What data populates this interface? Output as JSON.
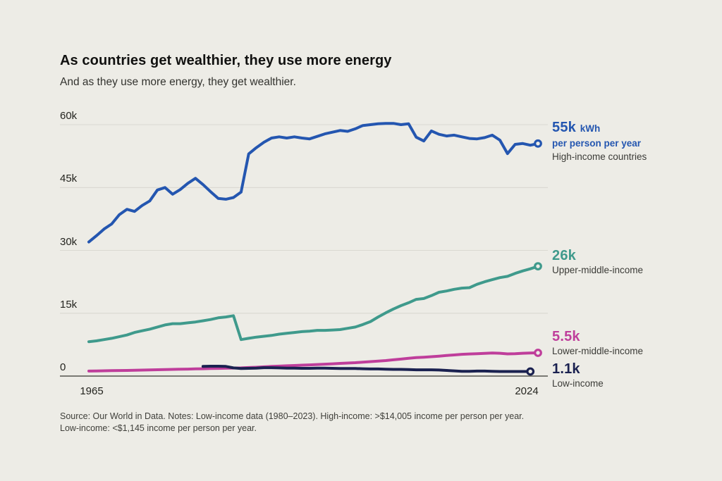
{
  "header": {
    "title": "As countries get wealthier, they use more energy",
    "subtitle": "And as they use more energy, they get wealthier."
  },
  "colors": {
    "background": "#edece6",
    "grid": "#d9d8d1",
    "axis": "#55544e",
    "high_income": "#2456b0",
    "upper_middle": "#3f9a8c",
    "lower_middle": "#bf3e9b",
    "low_income": "#1a2150"
  },
  "chart_data": {
    "type": "line",
    "title": "As countries get wealthier, they use more energy",
    "unit": "kWh per person per year",
    "values_unit": "thousand kWh per person per year",
    "x_range": [
      1965,
      2024
    ],
    "x_tick_labels": [
      "1965",
      "2024"
    ],
    "ylim": [
      0,
      60
    ],
    "grid": "horizontal",
    "legend_position": "right",
    "y_ticks": [
      {
        "value": 60,
        "label": "60k"
      },
      {
        "value": 45,
        "label": "45k"
      },
      {
        "value": 30,
        "label": "30k"
      },
      {
        "value": 15,
        "label": "15k"
      },
      {
        "value": 0,
        "label": "0"
      }
    ],
    "series": [
      {
        "name": "High-income countries",
        "color": "#2456b0",
        "start_year": 1965,
        "end_label": {
          "value": "55k",
          "unit": "kWh",
          "sub": "per person per year"
        },
        "values": [
          32.0,
          33.5,
          35.1,
          36.3,
          38.5,
          39.8,
          39.3,
          40.7,
          41.8,
          44.4,
          45.0,
          43.4,
          44.5,
          46.0,
          47.2,
          45.7,
          44.0,
          42.4,
          42.2,
          42.6,
          43.9,
          53.0,
          54.5,
          55.8,
          56.8,
          57.1,
          56.8,
          57.1,
          56.8,
          56.6,
          57.2,
          57.8,
          58.2,
          58.6,
          58.4,
          59.0,
          59.8,
          60.0,
          60.2,
          60.3,
          60.3,
          60.0,
          60.2,
          57.0,
          56.1,
          58.5,
          57.7,
          57.3,
          57.5,
          57.1,
          56.7,
          56.6,
          56.9,
          57.5,
          56.3,
          53.1,
          55.3,
          55.5,
          55.1,
          55.5
        ]
      },
      {
        "name": "Upper-middle-income",
        "color": "#3f9a8c",
        "start_year": 1965,
        "end_label": {
          "value": "26k"
        },
        "values": [
          8.2,
          8.4,
          8.7,
          9.0,
          9.4,
          9.8,
          10.4,
          10.8,
          11.2,
          11.7,
          12.2,
          12.5,
          12.5,
          12.7,
          12.9,
          13.2,
          13.5,
          13.9,
          14.1,
          14.4,
          8.7,
          9.0,
          9.3,
          9.5,
          9.7,
          10.0,
          10.2,
          10.4,
          10.6,
          10.7,
          10.9,
          10.9,
          11.0,
          11.1,
          11.4,
          11.7,
          12.3,
          13.0,
          14.1,
          15.1,
          16.0,
          16.8,
          17.5,
          18.3,
          18.5,
          19.2,
          20.0,
          20.3,
          20.7,
          21.0,
          21.1,
          21.9,
          22.5,
          23.0,
          23.5,
          23.8,
          24.5,
          25.1,
          25.6,
          26.2
        ]
      },
      {
        "name": "Lower-middle-income",
        "color": "#bf3e9b",
        "start_year": 1965,
        "end_label": {
          "value": "5.5k"
        },
        "values": [
          1.2,
          1.23,
          1.26,
          1.29,
          1.32,
          1.35,
          1.39,
          1.43,
          1.47,
          1.51,
          1.55,
          1.59,
          1.63,
          1.67,
          1.71,
          1.75,
          1.79,
          1.83,
          1.87,
          1.91,
          1.95,
          2.03,
          2.1,
          2.2,
          2.3,
          2.37,
          2.45,
          2.52,
          2.6,
          2.67,
          2.75,
          2.84,
          2.93,
          3.02,
          3.11,
          3.2,
          3.32,
          3.45,
          3.57,
          3.7,
          3.88,
          4.05,
          4.23,
          4.4,
          4.5,
          4.62,
          4.75,
          4.9,
          5.05,
          5.2,
          5.28,
          5.35,
          5.42,
          5.5,
          5.45,
          5.3,
          5.35,
          5.45,
          5.5,
          5.55
        ]
      },
      {
        "name": "Low-income",
        "color": "#1a2150",
        "start_year": 1980,
        "end_label": {
          "value": "1.1k"
        },
        "values": [
          2.3,
          2.35,
          2.35,
          2.3,
          1.95,
          1.8,
          1.85,
          1.9,
          2.0,
          2.0,
          1.95,
          1.9,
          1.9,
          1.85,
          1.85,
          1.9,
          1.9,
          1.85,
          1.8,
          1.8,
          1.8,
          1.75,
          1.7,
          1.7,
          1.65,
          1.6,
          1.6,
          1.55,
          1.5,
          1.5,
          1.5,
          1.45,
          1.35,
          1.25,
          1.15,
          1.15,
          1.2,
          1.2,
          1.15,
          1.1,
          1.1,
          1.1,
          1.1,
          1.1
        ]
      }
    ]
  },
  "footer": {
    "line1": "Source: Our World in Data. Notes: Low-income data (1980–2023). High-income: >$14,005 income per person per year.",
    "line2": "Low-income: <$1,145 income per person per year."
  }
}
